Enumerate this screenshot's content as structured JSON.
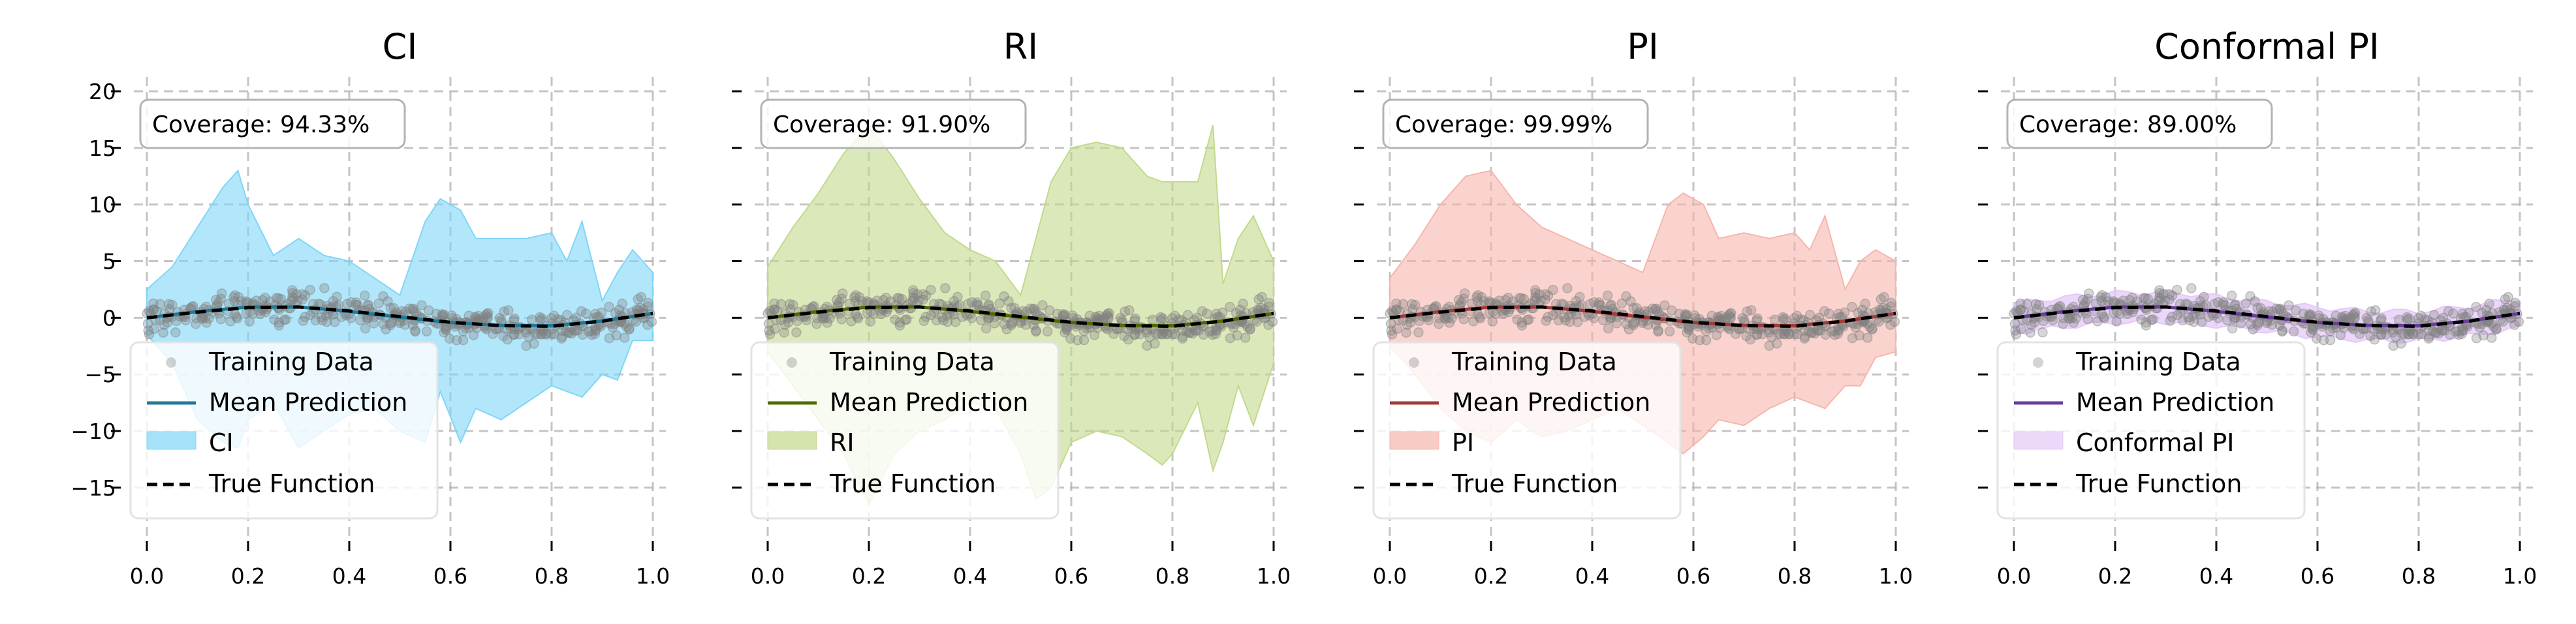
{
  "chart_data": [
    {
      "type": "line",
      "title": "CI",
      "band_label": "CI",
      "coverage_text": "Coverage: 94.33%",
      "colors": {
        "mean": "#1f7a99",
        "band": "#7fd6f7"
      },
      "xlim": [
        0,
        1
      ],
      "ylim": [
        -18,
        20
      ],
      "x_ticks": [
        "0.0",
        "0.2",
        "0.4",
        "0.6",
        "0.8",
        "1.0"
      ],
      "y_ticks": [
        "20",
        "15",
        "10",
        "5",
        "0",
        "−5",
        "−10",
        "−15"
      ],
      "legend": [
        "Training Data",
        "Mean Prediction",
        "CI",
        "True Function"
      ],
      "band": {
        "x": [
          0.0,
          0.05,
          0.1,
          0.15,
          0.18,
          0.2,
          0.25,
          0.3,
          0.35,
          0.4,
          0.45,
          0.5,
          0.55,
          0.58,
          0.62,
          0.65,
          0.7,
          0.75,
          0.8,
          0.83,
          0.86,
          0.9,
          0.93,
          0.96,
          1.0
        ],
        "upper": [
          2.5,
          4.5,
          8,
          11.5,
          13,
          10,
          5.5,
          7,
          5.5,
          5,
          3.5,
          2,
          8.5,
          10.5,
          9.5,
          7,
          7,
          7,
          7.5,
          5,
          8.5,
          1.5,
          4,
          6,
          4
        ],
        "lower": [
          -1.5,
          -4,
          -9,
          -11,
          -11.5,
          -9,
          -7.5,
          -11.5,
          -10,
          -8.5,
          -8,
          -10,
          -11,
          -6.5,
          -11,
          -8,
          -9,
          -7.5,
          -6,
          -6.5,
          -7,
          -5,
          -5.5,
          -2,
          -2
        ]
      }
    },
    {
      "type": "line",
      "title": "RI",
      "band_label": "RI",
      "coverage_text": "Coverage: 91.90%",
      "colors": {
        "mean": "#4f6b00",
        "band": "#c3d98c"
      },
      "xlim": [
        0,
        1
      ],
      "ylim": [
        -18,
        20
      ],
      "x_ticks": [
        "0.0",
        "0.2",
        "0.4",
        "0.6",
        "0.8",
        "1.0"
      ],
      "y_ticks": [
        "20",
        "15",
        "10",
        "5",
        "0",
        "−5",
        "−10",
        "−15"
      ],
      "legend": [
        "Training Data",
        "Mean Prediction",
        "RI",
        "True Function"
      ],
      "band": {
        "x": [
          0.0,
          0.05,
          0.1,
          0.15,
          0.2,
          0.25,
          0.3,
          0.35,
          0.4,
          0.45,
          0.5,
          0.53,
          0.56,
          0.6,
          0.65,
          0.7,
          0.75,
          0.78,
          0.8,
          0.85,
          0.88,
          0.9,
          0.93,
          0.96,
          1.0
        ],
        "upper": [
          4.5,
          8,
          11,
          14.5,
          17,
          14,
          10.5,
          7.5,
          6,
          5,
          2,
          7,
          12,
          15,
          15.5,
          15,
          12.5,
          12,
          12,
          12,
          17,
          3,
          7,
          9,
          5
        ],
        "lower": [
          -3,
          -6,
          -9,
          -12,
          -16.5,
          -12,
          -10,
          -9,
          -7.5,
          -8,
          -12,
          -16,
          -15,
          -11,
          -10,
          -10.5,
          -12,
          -13,
          -12,
          -7.5,
          -13.5,
          -11,
          -6,
          -9.5,
          -4
        ]
      }
    },
    {
      "type": "line",
      "title": "PI",
      "band_label": "PI",
      "coverage_text": "Coverage: 99.99%",
      "colors": {
        "mean": "#a33b3b",
        "band": "#f7b5ad"
      },
      "xlim": [
        0,
        1
      ],
      "ylim": [
        -18,
        20
      ],
      "x_ticks": [
        "0.0",
        "0.2",
        "0.4",
        "0.6",
        "0.8",
        "1.0"
      ],
      "y_ticks": [
        "20",
        "15",
        "10",
        "5",
        "0",
        "−5",
        "−10",
        "−15"
      ],
      "legend": [
        "Training Data",
        "Mean Prediction",
        "PI",
        "True Function"
      ],
      "band": {
        "x": [
          0.0,
          0.05,
          0.1,
          0.15,
          0.2,
          0.25,
          0.3,
          0.35,
          0.4,
          0.45,
          0.5,
          0.55,
          0.58,
          0.62,
          0.65,
          0.7,
          0.75,
          0.8,
          0.83,
          0.86,
          0.9,
          0.93,
          0.96,
          1.0
        ],
        "upper": [
          3.5,
          6.5,
          10,
          12.5,
          13,
          10,
          8,
          7,
          6,
          5,
          4,
          10,
          11,
          10,
          7,
          7.5,
          7,
          7.5,
          6,
          9,
          2.5,
          5,
          6,
          5
        ],
        "lower": [
          -2.5,
          -5,
          -8,
          -10,
          -11,
          -9,
          -10.5,
          -10,
          -9,
          -8,
          -9.5,
          -11,
          -12,
          -10.5,
          -9,
          -9.5,
          -8,
          -7,
          -7.5,
          -8,
          -6,
          -6,
          -3.5,
          -3
        ]
      }
    },
    {
      "type": "line",
      "title": "Conformal PI",
      "band_label": "Conformal PI",
      "coverage_text": "Coverage: 89.00%",
      "colors": {
        "mean": "#6a3d9a",
        "band": "#e4c9f7"
      },
      "xlim": [
        0,
        1
      ],
      "ylim": [
        -18,
        20
      ],
      "x_ticks": [
        "0.0",
        "0.2",
        "0.4",
        "0.6",
        "0.8",
        "1.0"
      ],
      "y_ticks": [
        "20",
        "15",
        "10",
        "5",
        "0",
        "−5",
        "−10",
        "−15"
      ],
      "legend": [
        "Training Data",
        "Mean Prediction",
        "Conformal PI",
        "True Function"
      ],
      "band_halfwidth": 1.3
    }
  ],
  "shared": {
    "true_function": {
      "x": [
        0.0,
        0.1,
        0.2,
        0.3,
        0.4,
        0.5,
        0.6,
        0.7,
        0.8,
        0.9,
        1.0
      ],
      "y": [
        0.0,
        0.5,
        0.9,
        0.95,
        0.6,
        0.1,
        -0.4,
        -0.7,
        -0.75,
        -0.3,
        0.4
      ]
    },
    "training_data_color": "#808080",
    "true_function_color": "#000000"
  }
}
